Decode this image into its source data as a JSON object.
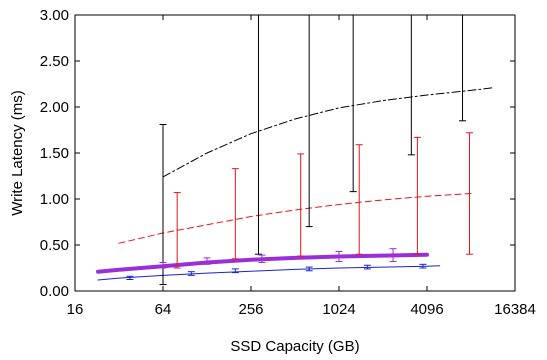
{
  "chart_data": {
    "type": "line",
    "title": "",
    "xlabel": "SSD Capacity (GB)",
    "ylabel": "Write Latency (ms)",
    "x_scale": "log2",
    "x_ticks": [
      16,
      64,
      256,
      1024,
      4096,
      16384
    ],
    "x_tick_labels": [
      "16",
      "64",
      "256",
      "1024",
      "4096",
      "16384"
    ],
    "y_ticks": [
      0,
      0.5,
      1.0,
      1.5,
      2.0,
      2.5,
      3.0
    ],
    "y_tick_labels": [
      "0.00",
      "0.50",
      "1.00",
      "1.50",
      "2.00",
      "2.50",
      "3.00"
    ],
    "xlim": [
      16,
      16384
    ],
    "ylim": [
      0,
      3.0
    ],
    "grid": false,
    "legend": "none",
    "series": [
      {
        "style": "dash-dot",
        "color": "#000000",
        "width": 1,
        "x": [
          64,
          128,
          256,
          512,
          1024,
          2048,
          4096,
          8192,
          11585
        ],
        "y": [
          1.24,
          1.5,
          1.71,
          1.87,
          1.99,
          2.07,
          2.13,
          2.18,
          2.21
        ],
        "errorbars": [
          {
            "x": 64,
            "low": 0.07,
            "high": 1.81
          },
          {
            "x": 288,
            "low": 0.4,
            "high": 3.0
          },
          {
            "x": 640,
            "low": 0.7,
            "high": 3.0
          },
          {
            "x": 1280,
            "low": 1.08,
            "high": 3.0
          },
          {
            "x": 3200,
            "low": 1.48,
            "high": 3.0
          },
          {
            "x": 7168,
            "low": 1.85,
            "high": 3.0
          }
        ]
      },
      {
        "style": "dashed",
        "color": "#e8161b",
        "width": 1,
        "x": [
          32,
          64,
          128,
          256,
          512,
          1024,
          2048,
          4096,
          8192
        ],
        "y": [
          0.52,
          0.63,
          0.72,
          0.81,
          0.88,
          0.94,
          0.99,
          1.03,
          1.06
        ],
        "errorbars": [
          {
            "x": 80,
            "low": 0.25,
            "high": 1.07
          },
          {
            "x": 200,
            "low": 0.35,
            "high": 1.33
          },
          {
            "x": 560,
            "low": 0.38,
            "high": 1.49
          },
          {
            "x": 1408,
            "low": 0.4,
            "high": 1.59
          },
          {
            "x": 3520,
            "low": 0.4,
            "high": 1.67
          },
          {
            "x": 8000,
            "low": 0.4,
            "high": 1.72
          }
        ]
      },
      {
        "style": "solid",
        "color": "#9a2fd9",
        "width": 4,
        "x": [
          23,
          32,
          64,
          128,
          256,
          512,
          1024,
          2048,
          4096
        ],
        "y": [
          0.21,
          0.23,
          0.27,
          0.31,
          0.34,
          0.36,
          0.375,
          0.385,
          0.395
        ],
        "errorbars": [
          {
            "x": 64,
            "low": 0.25,
            "high": 0.31
          },
          {
            "x": 128,
            "low": 0.29,
            "high": 0.36
          },
          {
            "x": 304,
            "low": 0.31,
            "high": 0.39
          },
          {
            "x": 1024,
            "low": 0.32,
            "high": 0.43
          },
          {
            "x": 2400,
            "low": 0.32,
            "high": 0.46
          }
        ]
      },
      {
        "style": "solid",
        "color": "#1c22c9",
        "width": 1,
        "x": [
          23,
          32,
          64,
          128,
          256,
          512,
          1024,
          2048,
          4096,
          5000
        ],
        "y": [
          0.12,
          0.14,
          0.17,
          0.195,
          0.215,
          0.235,
          0.25,
          0.26,
          0.27,
          0.275
        ],
        "errorbars": [
          {
            "x": 38,
            "low": 0.125,
            "high": 0.16
          },
          {
            "x": 100,
            "low": 0.17,
            "high": 0.21
          },
          {
            "x": 200,
            "low": 0.2,
            "high": 0.24
          },
          {
            "x": 640,
            "low": 0.22,
            "high": 0.26
          },
          {
            "x": 1600,
            "low": 0.24,
            "high": 0.28
          },
          {
            "x": 3840,
            "low": 0.25,
            "high": 0.29
          }
        ]
      }
    ]
  }
}
